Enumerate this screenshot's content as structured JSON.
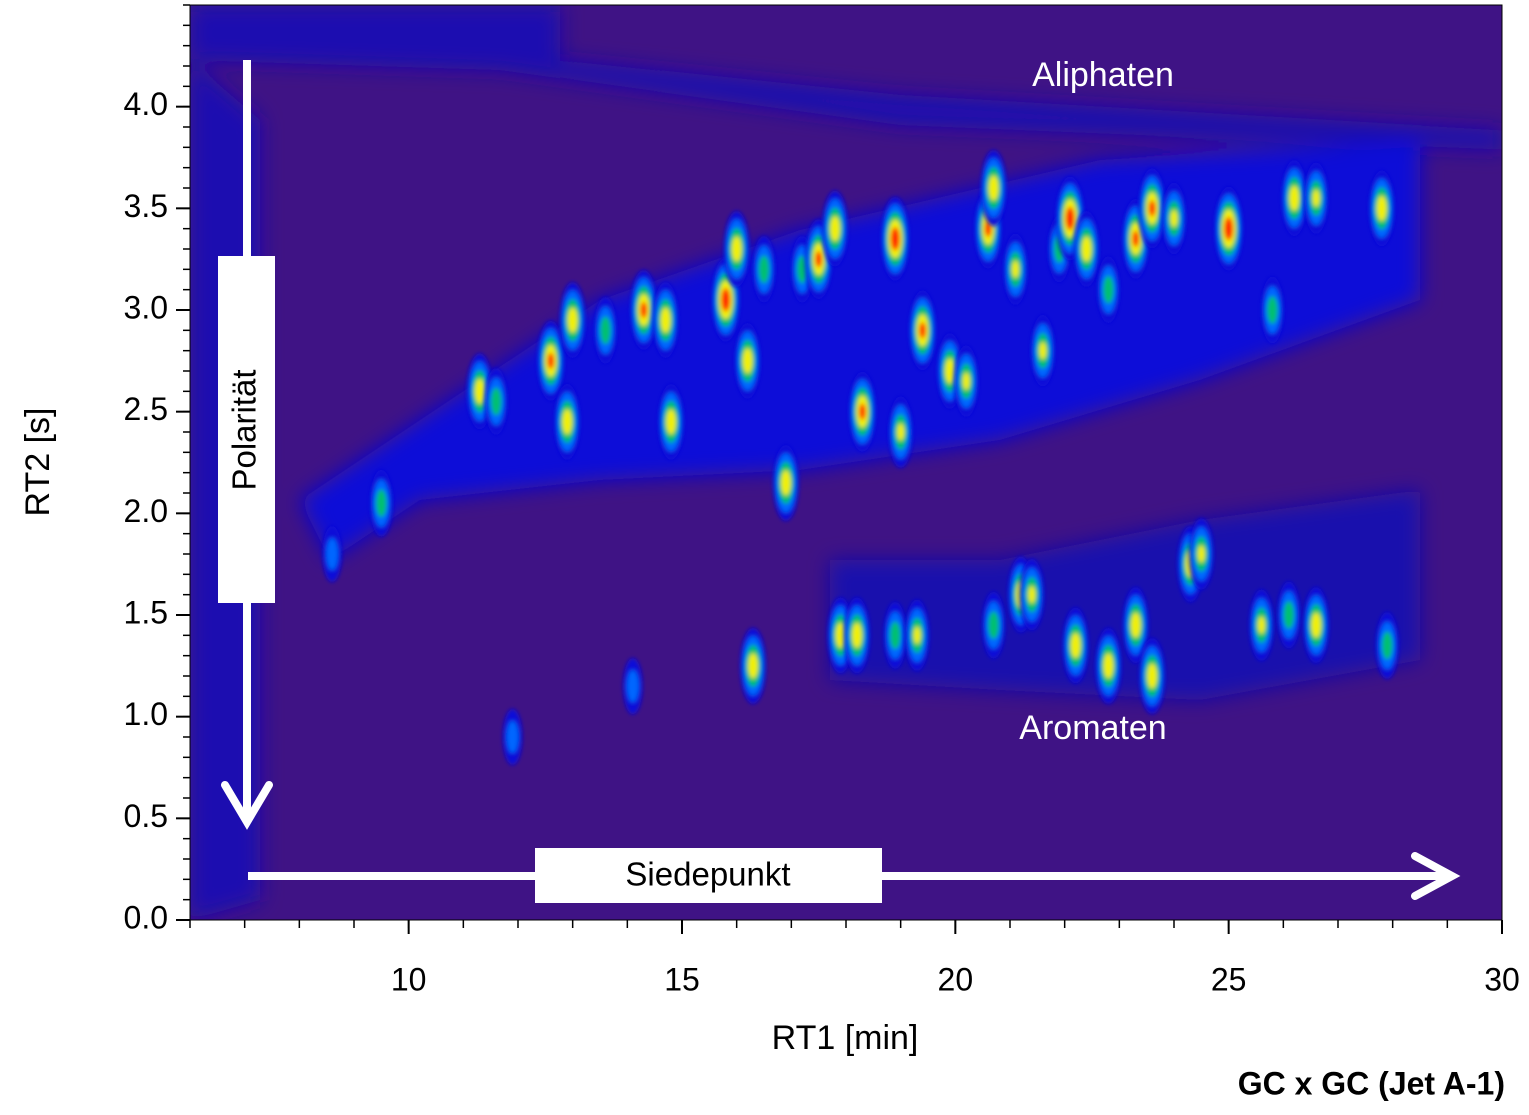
{
  "chart_data": {
    "type": "heatmap",
    "xlabel": "RT1 [min]",
    "ylabel": "RT2 [s]",
    "xlim": [
      6,
      30
    ],
    "xticks": [
      10,
      15,
      20,
      25,
      30
    ],
    "xminor": 1,
    "ylim": [
      0,
      4.5
    ],
    "yticks": [
      {
        "value": 0,
        "label": "0.0"
      },
      0.5,
      {
        "value": 1,
        "label": "1.0"
      },
      1.5,
      {
        "value": 2,
        "label": "2.0"
      },
      2.5,
      {
        "value": 3,
        "label": "3.0"
      },
      3.5,
      {
        "value": 4,
        "label": "4.0"
      }
    ],
    "yminor": 0.1,
    "colormap": [
      "#3f1385",
      "#0a0ad8",
      "#0066ff",
      "#00c070",
      "#f2f000",
      "#ff2000"
    ],
    "annotations": {
      "aliphatic": "Aliphaten",
      "aromatic": "Aromaten",
      "polarity": "Polarität",
      "boiling": "Siedepunkt",
      "caption": "GC x GC (Jet A-1)"
    },
    "x": [
      9.5,
      11.3,
      11.6,
      12.6,
      12.9,
      13.0,
      13.6,
      14.3,
      14.7,
      14.8,
      15.8,
      16.0,
      16.2,
      16.5,
      16.9,
      17.2,
      17.5,
      17.8,
      18.3,
      18.9,
      19.4,
      19.0,
      19.9,
      20.2,
      20.6,
      20.7,
      21.1,
      21.6,
      21.9,
      22.1,
      22.4,
      22.8,
      23.3,
      23.6,
      24.0,
      25.0,
      25.8,
      26.2,
      26.6,
      27.8,
      16.3,
      17.9,
      18.2,
      18.9,
      19.3,
      20.7,
      21.2,
      21.4,
      22.2,
      22.8,
      23.3,
      23.6,
      24.3,
      24.5,
      25.6,
      26.1,
      26.6,
      27.9,
      14.1,
      8.6,
      11.9
    ],
    "y": [
      2.05,
      2.6,
      2.55,
      2.75,
      2.45,
      2.95,
      2.9,
      3.0,
      2.95,
      2.45,
      3.05,
      3.3,
      2.75,
      3.2,
      2.15,
      3.2,
      3.25,
      3.4,
      2.5,
      3.35,
      2.9,
      2.4,
      2.7,
      2.65,
      3.4,
      3.6,
      3.2,
      2.8,
      3.3,
      3.45,
      3.3,
      3.1,
      3.35,
      3.5,
      3.45,
      3.4,
      3.0,
      3.55,
      3.55,
      3.5,
      1.25,
      1.4,
      1.4,
      1.4,
      1.4,
      1.45,
      1.6,
      1.6,
      1.35,
      1.25,
      1.45,
      1.2,
      1.75,
      1.8,
      1.45,
      1.5,
      1.45,
      1.35,
      1.15,
      1.8,
      0.9
    ],
    "intensity": [
      3,
      4,
      3,
      4.5,
      4,
      4,
      3,
      4.5,
      4,
      4,
      5,
      4,
      4,
      3,
      4,
      3,
      4.5,
      4,
      4.5,
      5,
      4.5,
      3.5,
      4,
      3.5,
      4.5,
      4,
      3.5,
      3.5,
      3,
      5,
      4,
      3,
      4.5,
      4.5,
      3.5,
      5,
      3,
      4,
      3.5,
      4,
      4,
      4,
      4,
      3,
      3.5,
      3,
      4,
      3.5,
      4,
      4,
      4,
      4,
      4,
      3.5,
      3.5,
      3,
      4,
      3,
      2,
      2,
      2
    ]
  }
}
